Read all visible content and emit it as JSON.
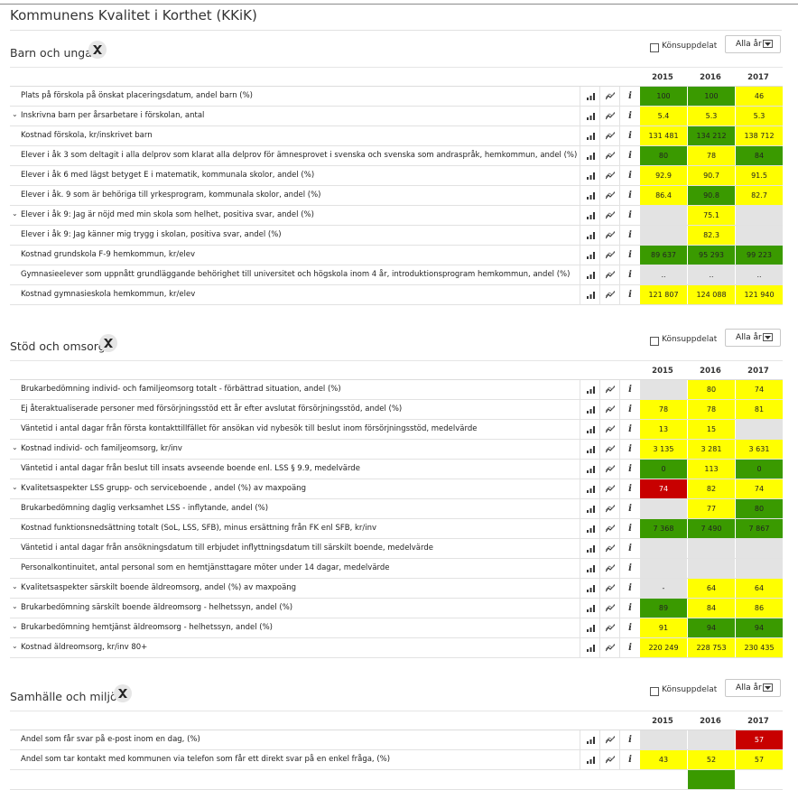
{
  "page_title": "Kommunens Kvalitet i Korthet (KKiK)",
  "controls": {
    "gender_split_label": "Könsuppdelat",
    "year_select_value": "Alla år"
  },
  "colors": {
    "yellow": "#ffff00",
    "green": "#3a9a00",
    "red": "#c80000",
    "grey": "#e3e3e3"
  },
  "icons": [
    "bar-chart-icon",
    "trend-icon",
    "info-icon",
    "excel-export-icon",
    "chevron-down-icon"
  ],
  "years": [
    "2015",
    "2016",
    "2017"
  ],
  "sections": [
    {
      "title": "Barn och unga",
      "rows": [
        {
          "name": "Plats på förskola på önskat placeringsdatum, andel barn (%)",
          "expand": false,
          "cells": [
            {
              "v": "100",
              "c": "green"
            },
            {
              "v": "100",
              "c": "green"
            },
            {
              "v": "46",
              "c": "yellow"
            }
          ]
        },
        {
          "name": "Inskrivna barn per årsarbetare i förskolan, antal",
          "expand": true,
          "cells": [
            {
              "v": "5.4",
              "c": "yellow"
            },
            {
              "v": "5.3",
              "c": "yellow"
            },
            {
              "v": "5.3",
              "c": "yellow"
            }
          ]
        },
        {
          "name": "Kostnad förskola, kr/inskrivet barn",
          "expand": false,
          "cells": [
            {
              "v": "131 481",
              "c": "yellow"
            },
            {
              "v": "134 212",
              "c": "green"
            },
            {
              "v": "138 712",
              "c": "yellow"
            }
          ]
        },
        {
          "name": "Elever i åk 3 som deltagit i alla delprov som klarat alla delprov för ämnesprovet i svenska och svenska som andraspråk, hemkommun, andel (%)",
          "expand": false,
          "cells": [
            {
              "v": "80",
              "c": "green"
            },
            {
              "v": "78",
              "c": "yellow"
            },
            {
              "v": "84",
              "c": "green"
            }
          ]
        },
        {
          "name": "Elever i åk 6 med lägst betyget E i matematik, kommunala skolor, andel (%)",
          "expand": false,
          "cells": [
            {
              "v": "92.9",
              "c": "yellow"
            },
            {
              "v": "90.7",
              "c": "yellow"
            },
            {
              "v": "91.5",
              "c": "yellow"
            }
          ]
        },
        {
          "name": "Elever i åk. 9 som är behöriga till yrkesprogram, kommunala skolor, andel (%)",
          "expand": false,
          "cells": [
            {
              "v": "86.4",
              "c": "yellow"
            },
            {
              "v": "90.8",
              "c": "green"
            },
            {
              "v": "82.7",
              "c": "yellow"
            }
          ]
        },
        {
          "name": "Elever i åk 9: Jag är nöjd med min skola som helhet, positiva svar, andel (%)",
          "expand": true,
          "cells": [
            {
              "v": "",
              "c": "grey"
            },
            {
              "v": "75.1",
              "c": "yellow"
            },
            {
              "v": "",
              "c": "grey"
            }
          ]
        },
        {
          "name": "Elever i åk 9: Jag känner mig trygg i skolan, positiva svar, andel (%)",
          "expand": false,
          "cells": [
            {
              "v": "",
              "c": "grey"
            },
            {
              "v": "82.3",
              "c": "yellow"
            },
            {
              "v": "",
              "c": "grey"
            }
          ]
        },
        {
          "name": "Kostnad grundskola F-9 hemkommun, kr/elev",
          "expand": false,
          "cells": [
            {
              "v": "89 637",
              "c": "green"
            },
            {
              "v": "95 293",
              "c": "green"
            },
            {
              "v": "99 223",
              "c": "green"
            }
          ]
        },
        {
          "name": "Gymnasieelever som uppnått grundläggande behörighet till universitet och högskola inom 4 år, introduktionsprogram hemkommun, andel (%)",
          "expand": false,
          "cells": [
            {
              "v": "..",
              "c": "grey"
            },
            {
              "v": "..",
              "c": "grey"
            },
            {
              "v": "..",
              "c": "grey"
            }
          ]
        },
        {
          "name": "Kostnad gymnasieskola hemkommun, kr/elev",
          "expand": false,
          "cells": [
            {
              "v": "121 807",
              "c": "yellow"
            },
            {
              "v": "124 088",
              "c": "yellow"
            },
            {
              "v": "121 940",
              "c": "yellow"
            }
          ]
        }
      ]
    },
    {
      "title": "Stöd och omsorg",
      "rows": [
        {
          "name": "Brukarbedömning individ- och familjeomsorg totalt - förbättrad situation, andel (%)",
          "expand": false,
          "cells": [
            {
              "v": "",
              "c": "grey"
            },
            {
              "v": "80",
              "c": "yellow"
            },
            {
              "v": "74",
              "c": "yellow"
            }
          ]
        },
        {
          "name": "Ej återaktualiserade personer med försörjningsstöd ett år efter avslutat försörjningsstöd, andel (%)",
          "expand": false,
          "cells": [
            {
              "v": "78",
              "c": "yellow"
            },
            {
              "v": "78",
              "c": "yellow"
            },
            {
              "v": "81",
              "c": "yellow"
            }
          ]
        },
        {
          "name": "Väntetid i antal dagar från första kontakttillfället för ansökan vid nybesök till beslut inom försörjningsstöd, medelvärde",
          "expand": false,
          "cells": [
            {
              "v": "13",
              "c": "yellow"
            },
            {
              "v": "15",
              "c": "yellow"
            },
            {
              "v": "",
              "c": "grey"
            }
          ]
        },
        {
          "name": "Kostnad individ- och familjeomsorg, kr/inv",
          "expand": true,
          "cells": [
            {
              "v": "3 135",
              "c": "yellow"
            },
            {
              "v": "3 281",
              "c": "yellow"
            },
            {
              "v": "3 631",
              "c": "yellow"
            }
          ]
        },
        {
          "name": "Väntetid i antal dagar från beslut till insats avseende boende enl. LSS § 9.9, medelvärde",
          "expand": false,
          "cells": [
            {
              "v": "0",
              "c": "green"
            },
            {
              "v": "113",
              "c": "yellow"
            },
            {
              "v": "0",
              "c": "green"
            }
          ]
        },
        {
          "name": "Kvalitetsaspekter LSS grupp- och serviceboende , andel (%) av maxpoäng",
          "expand": true,
          "cells": [
            {
              "v": "74",
              "c": "red"
            },
            {
              "v": "82",
              "c": "yellow"
            },
            {
              "v": "74",
              "c": "yellow"
            }
          ]
        },
        {
          "name": "Brukarbedömning daglig verksamhet LSS - inflytande, andel (%)",
          "expand": false,
          "cells": [
            {
              "v": "",
              "c": "grey"
            },
            {
              "v": "77",
              "c": "yellow"
            },
            {
              "v": "80",
              "c": "green"
            }
          ]
        },
        {
          "name": "Kostnad funktionsnedsättning totalt (SoL, LSS, SFB), minus ersättning från FK enl SFB, kr/inv",
          "expand": false,
          "cells": [
            {
              "v": "7 368",
              "c": "green"
            },
            {
              "v": "7 490",
              "c": "green"
            },
            {
              "v": "7 867",
              "c": "green"
            }
          ]
        },
        {
          "name": "Väntetid i antal dagar från ansökningsdatum till erbjudet inflyttningsdatum till särskilt boende, medelvärde",
          "expand": false,
          "cells": [
            {
              "v": "",
              "c": "grey"
            },
            {
              "v": "",
              "c": "grey"
            },
            {
              "v": "",
              "c": "grey"
            }
          ]
        },
        {
          "name": "Personalkontinuitet, antal personal som en hemtjänsttagare möter under 14 dagar, medelvärde",
          "expand": false,
          "cells": [
            {
              "v": "",
              "c": "grey"
            },
            {
              "v": "",
              "c": "grey"
            },
            {
              "v": "",
              "c": "grey"
            }
          ]
        },
        {
          "name": "Kvalitetsaspekter särskilt boende äldreomsorg, andel (%) av maxpoäng",
          "expand": true,
          "cells": [
            {
              "v": "-",
              "c": "grey"
            },
            {
              "v": "64",
              "c": "yellow"
            },
            {
              "v": "64",
              "c": "yellow"
            }
          ]
        },
        {
          "name": "Brukarbedömning särskilt boende äldreomsorg - helhetssyn, andel (%)",
          "expand": true,
          "cells": [
            {
              "v": "89",
              "c": "green"
            },
            {
              "v": "84",
              "c": "yellow"
            },
            {
              "v": "86",
              "c": "yellow"
            }
          ]
        },
        {
          "name": "Brukarbedömning hemtjänst äldreomsorg - helhetssyn, andel (%)",
          "expand": true,
          "cells": [
            {
              "v": "91",
              "c": "yellow"
            },
            {
              "v": "94",
              "c": "green"
            },
            {
              "v": "94",
              "c": "green"
            }
          ]
        },
        {
          "name": "Kostnad äldreomsorg, kr/inv 80+",
          "expand": true,
          "cells": [
            {
              "v": "220 249",
              "c": "yellow"
            },
            {
              "v": "228 753",
              "c": "yellow"
            },
            {
              "v": "230 435",
              "c": "yellow"
            }
          ]
        }
      ]
    },
    {
      "title": "Samhälle och miljö",
      "rows": [
        {
          "name": "Andel som får svar på e-post inom en dag, (%)",
          "expand": false,
          "cells": [
            {
              "v": "",
              "c": "grey"
            },
            {
              "v": "",
              "c": "grey"
            },
            {
              "v": "57",
              "c": "red"
            }
          ]
        },
        {
          "name": "Andel som tar kontakt med kommunen via telefon som får ett direkt svar på en enkel fråga, (%)",
          "expand": false,
          "cells": [
            {
              "v": "43",
              "c": "yellow"
            },
            {
              "v": "52",
              "c": "yellow"
            },
            {
              "v": "57",
              "c": "yellow"
            }
          ]
        },
        {
          "name": "",
          "expand": false,
          "cells": [
            {
              "v": "",
              "c": "white"
            },
            {
              "v": "",
              "c": "green"
            },
            {
              "v": "",
              "c": "white"
            }
          ]
        }
      ]
    }
  ]
}
